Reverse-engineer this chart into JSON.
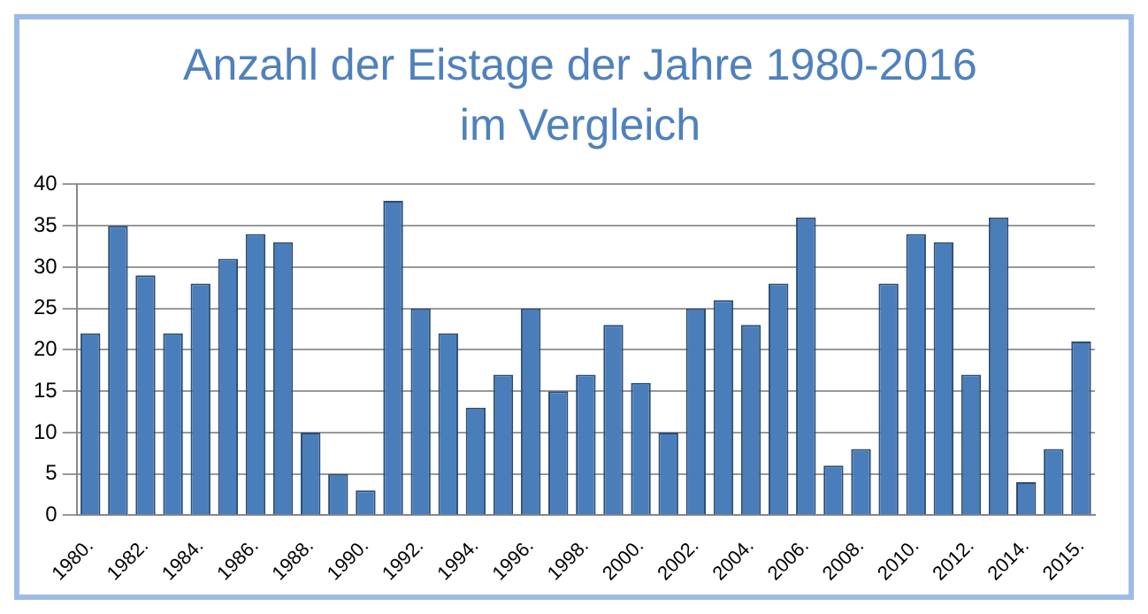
{
  "chart_data": {
    "type": "bar",
    "title": "Anzahl der Eistage der Jahre 1980-2016 im Vergleich",
    "categories": [
      "1980.",
      null,
      "1982.",
      null,
      "1984.",
      null,
      "1986.",
      null,
      "1988.",
      null,
      "1990.",
      null,
      "1992.",
      null,
      "1994.",
      null,
      "1996.",
      null,
      "1998.",
      null,
      "2000.",
      null,
      "2002.",
      null,
      "2004.",
      null,
      "2006.",
      null,
      "2008.",
      null,
      "2010.",
      null,
      "2012.",
      null,
      "2014.",
      null,
      "2015."
    ],
    "values": [
      22,
      35,
      29,
      22,
      28,
      31,
      34,
      33,
      10,
      5,
      3,
      38,
      25,
      22,
      13,
      17,
      25,
      15,
      17,
      23,
      16,
      10,
      25,
      26,
      23,
      28,
      36,
      6,
      8,
      28,
      34,
      33,
      17,
      36,
      4,
      8,
      21
    ],
    "color": "#4a7ebb",
    "ylim": [
      0,
      40
    ],
    "yticks": [
      0,
      5,
      10,
      15,
      20,
      25,
      30,
      35,
      40
    ],
    "grid": "y",
    "legend": false
  }
}
